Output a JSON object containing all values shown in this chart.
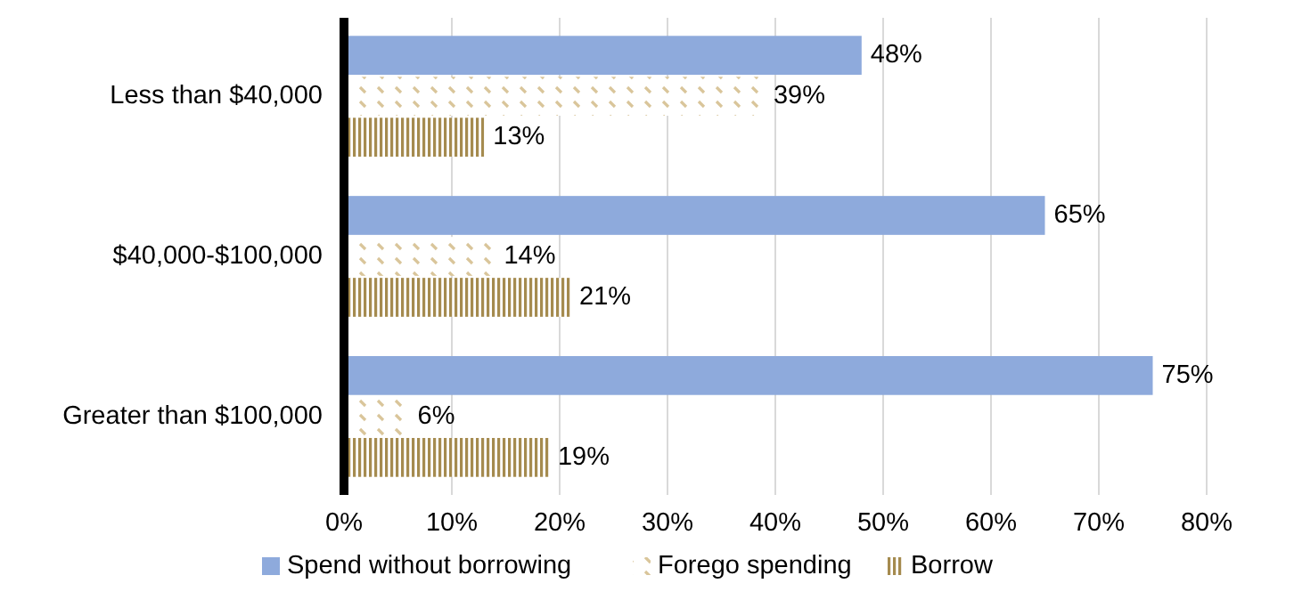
{
  "chart_data": {
    "type": "bar",
    "orientation": "horizontal",
    "categories": [
      "Less than $40,000",
      "$40,000-$100,000",
      "Greater than $100,000"
    ],
    "series": [
      {
        "name": "Spend without borrowing",
        "color": "#8eaadc",
        "values": [
          48,
          65,
          75
        ],
        "value_labels": [
          "48%",
          "65%",
          "75%"
        ]
      },
      {
        "name": "Forego spending",
        "color": "#d9c59a",
        "values": [
          39,
          14,
          6
        ],
        "value_labels": [
          "39%",
          "14%",
          "6%"
        ]
      },
      {
        "name": "Borrow",
        "color": "#a58b4f",
        "values": [
          13,
          21,
          19
        ],
        "value_labels": [
          "13%",
          "21%",
          "19%"
        ]
      }
    ],
    "xlim": [
      0,
      80
    ],
    "xticks": [
      {
        "value": 0,
        "label": "0%"
      },
      {
        "value": 10,
        "label": "10%"
      },
      {
        "value": 20,
        "label": "20%"
      },
      {
        "value": 30,
        "label": "30%"
      },
      {
        "value": 40,
        "label": "40%"
      },
      {
        "value": 50,
        "label": "50%"
      },
      {
        "value": 60,
        "label": "60%"
      },
      {
        "value": 70,
        "label": "70%"
      },
      {
        "value": 80,
        "label": "80%"
      }
    ],
    "grid": "x",
    "legend": "bottom"
  }
}
